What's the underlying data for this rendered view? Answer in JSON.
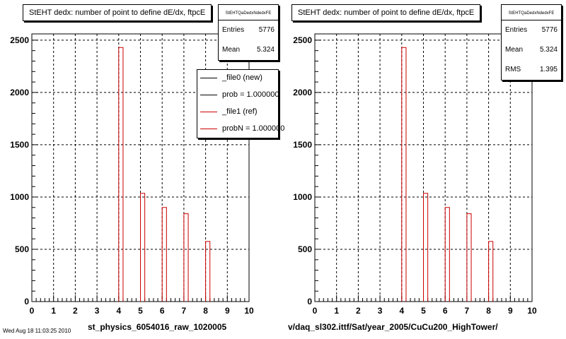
{
  "panels": [
    {
      "title": "StEHT dedx: number of point to define dE/dx, ftpcE",
      "stats_name": "StEHTQaDedxNdedxFE",
      "stats": [
        {
          "label": "Entries",
          "value": "5776"
        },
        {
          "label": "Mean",
          "value": "5.324"
        }
      ],
      "xtitle": "st_physics_6054016_raw_1020005"
    },
    {
      "title": "StEHT dedx: number of point to define dE/dx, ftpcE",
      "stats_name": "StEHTQaDedxNdedxFE",
      "stats": [
        {
          "label": "Entries",
          "value": "5776"
        },
        {
          "label": "Mean",
          "value": "5.324"
        },
        {
          "label": "RMS",
          "value": "1.395"
        }
      ],
      "xtitle": "v/daq_sl302.ittf/Sat/year_2005/CuCu200_HighTower/"
    }
  ],
  "legend": [
    {
      "label": "_file0 (new)",
      "color": "#000000"
    },
    {
      "label": "prob = 1.000000",
      "color": "#000000"
    },
    {
      "label": "_file1 (ref)",
      "color": "#cc0000"
    },
    {
      "label": "probN = 1.000000",
      "color": "#cc0000"
    }
  ],
  "footer": "Wed Aug 18 11:03:25 2010",
  "chart_data": [
    {
      "type": "bar",
      "title": "StEHT dedx: number of point to define dE/dx, ftpcE",
      "xlabel": "st_physics_6054016_raw_1020005",
      "ylabel": "",
      "xlim": [
        0,
        10
      ],
      "ylim": [
        0,
        2560
      ],
      "xticks": [
        0,
        1,
        2,
        3,
        4,
        5,
        6,
        7,
        8,
        9,
        10
      ],
      "yticks": [
        0,
        500,
        1000,
        1500,
        2000,
        2500
      ],
      "grid": true,
      "bin_width": 0.2,
      "series": [
        {
          "name": "_file1 (ref)",
          "color": "#cc0000",
          "bins": [
            {
              "x": 4.1,
              "value": 2430
            },
            {
              "x": 5.1,
              "value": 1035
            },
            {
              "x": 6.1,
              "value": 900
            },
            {
              "x": 7.1,
              "value": 840
            },
            {
              "x": 8.1,
              "value": 575
            }
          ]
        }
      ]
    },
    {
      "type": "bar",
      "title": "StEHT dedx: number of point to define dE/dx, ftpcE",
      "xlabel": "v/daq_sl302.ittf/Sat/year_2005/CuCu200_HighTower/",
      "ylabel": "",
      "xlim": [
        0,
        10
      ],
      "ylim": [
        0,
        2560
      ],
      "xticks": [
        0,
        1,
        2,
        3,
        4,
        5,
        6,
        7,
        8,
        9,
        10
      ],
      "yticks": [
        0,
        500,
        1000,
        1500,
        2000,
        2500
      ],
      "grid": true,
      "bin_width": 0.2,
      "series": [
        {
          "name": "",
          "color": "#cc0000",
          "bins": [
            {
              "x": 4.1,
              "value": 2430
            },
            {
              "x": 5.1,
              "value": 1035
            },
            {
              "x": 6.1,
              "value": 900
            },
            {
              "x": 7.1,
              "value": 840
            },
            {
              "x": 8.1,
              "value": 575
            }
          ]
        }
      ]
    }
  ]
}
